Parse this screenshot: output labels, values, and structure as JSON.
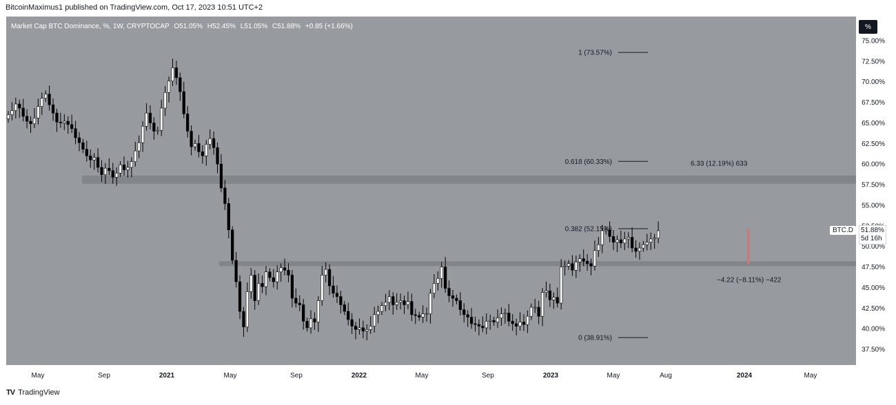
{
  "publisher_line": "BitcoinMaximus1 published on TradingView.com, Oct 17, 2023 10:51 UTC+2",
  "legend": {
    "name": "Market Cap BTC Dominance, %, 1W, CRYPTOCAP",
    "o_label": "O",
    "o_value": "51.05%",
    "h_label": "H",
    "h_value": "52.45%",
    "l_label": "L",
    "l_value": "51.05%",
    "c_label": "C",
    "c_value": "51.88%",
    "change": "+0.85 (+1.66%)"
  },
  "percent_button": "%",
  "symbol_tag": "BTC.D",
  "price_tag": {
    "price": "51.88%",
    "countdown": "5d 16h"
  },
  "footer_logo": "TV",
  "footer_brand": "TradingView",
  "colors": {
    "background": "#979a9f",
    "zone": "#7e8186",
    "bull": "#ffffff",
    "bear": "#000000",
    "measure": "#c77b7b"
  },
  "chart_data": {
    "type": "candlestick",
    "yticks": [
      "75.00%",
      "72.50%",
      "70.00%",
      "67.50%",
      "65.00%",
      "62.50%",
      "60.00%",
      "57.50%",
      "55.00%",
      "52.50%",
      "50.00%",
      "47.50%",
      "45.00%",
      "42.50%",
      "40.00%",
      "37.50%"
    ],
    "ylim": [
      35.5,
      77
    ],
    "xticks": [
      "May",
      "Sep",
      "2021",
      "May",
      "Sep",
      "2022",
      "May",
      "Sep",
      "2023",
      "May",
      "Aug",
      "2024",
      "May"
    ],
    "fib_levels": [
      {
        "label": "1 (73.57%)",
        "value": 73.57
      },
      {
        "label": "0.618 (60.33%)",
        "value": 60.33
      },
      {
        "label": "0.382 (52.15%)",
        "value": 52.15
      },
      {
        "label": "0 (38.91%)",
        "value": 38.91
      }
    ],
    "zones": [
      {
        "from": 57.6,
        "to": 58.6
      },
      {
        "from": 47.6,
        "to": 48.2
      }
    ],
    "measure_up": "6.33 (12.19%) 633",
    "measure_down": "−4.22 (−8.11%) −422",
    "closes": [
      66.0,
      66.5,
      67.3,
      66.8,
      65.8,
      65.2,
      64.9,
      65.6,
      67.0,
      68.0,
      68.5,
      67.2,
      66.2,
      65.1,
      65.0,
      65.2,
      64.8,
      64.3,
      63.2,
      62.6,
      61.8,
      61.0,
      60.5,
      60.8,
      59.6,
      58.7,
      59.5,
      59.2,
      58.4,
      58.9,
      59.9,
      59.3,
      59.6,
      60.3,
      61.6,
      62.6,
      64.6,
      66.2,
      65.0,
      64.0,
      64.1,
      66.8,
      68.7,
      70.1,
      71.7,
      70.5,
      68.8,
      66.1,
      64.0,
      62.1,
      62.5,
      61.5,
      61.0,
      62.4,
      63.1,
      62.0,
      60.0,
      57.1,
      55.2,
      52.0,
      48.3,
      45.7,
      42.1,
      40.2,
      44.5,
      46.5,
      43.4,
      45.5,
      45.1,
      46.9,
      46.2,
      45.7,
      46.9,
      47.4,
      47.1,
      46.5,
      43.7,
      43.1,
      42.9,
      40.9,
      40.1,
      41.2,
      40.8,
      43.4,
      46.5,
      47.2,
      45.2,
      44.3,
      43.9,
      42.9,
      42.1,
      41.1,
      40.3,
      39.9,
      40.1,
      39.7,
      39.9,
      40.3,
      41.7,
      42.1,
      42.8,
      43.2,
      43.9,
      42.9,
      43.2,
      43.4,
      42.9,
      43.3,
      41.7,
      41.6,
      41.4,
      41.8,
      41.8,
      44.3,
      45.5,
      46.1,
      47.5,
      44.9,
      44.0,
      43.7,
      43.4,
      42.3,
      41.7,
      41.4,
      40.6,
      40.5,
      40.3,
      40.1,
      40.9,
      41.0,
      40.8,
      41.3,
      41.8,
      41.9,
      40.9,
      40.6,
      40.3,
      40.8,
      40.5,
      41.5,
      42.6,
      42.6,
      41.5,
      44.4,
      44.6,
      43.5,
      43.8,
      43.1,
      47.5,
      47.6,
      47.9,
      47.1,
      48.1,
      48.5,
      48.2,
      47.9,
      47.6,
      49.5,
      50.2,
      51.9,
      52.0,
      51.2,
      50.5,
      50.8,
      50.4,
      50.9,
      51.1,
      49.8,
      49.4,
      49.8,
      50.2,
      50.5,
      50.9,
      51.0,
      51.9
    ]
  }
}
